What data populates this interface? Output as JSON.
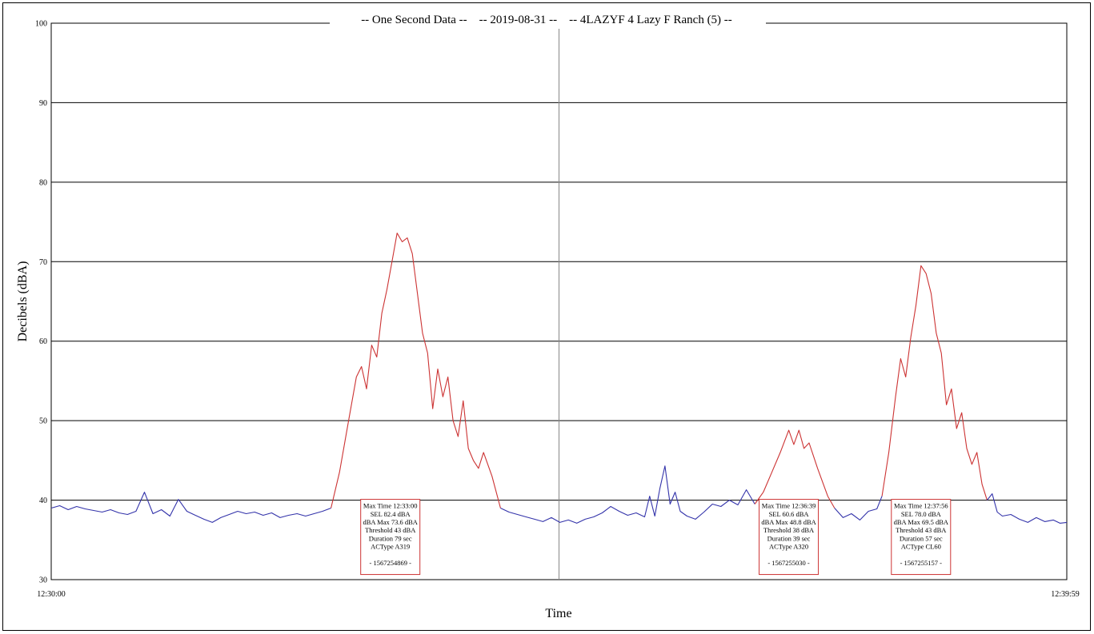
{
  "chart_data": {
    "type": "line",
    "title": "-- One Second Data --    -- 2019-08-31 --    -- 4LAZYF 4 Lazy F Ranch (5) --",
    "xlabel": "Time",
    "ylabel": "Decibels (dBA)",
    "xlim": [
      "12:30:00",
      "12:39:59"
    ],
    "x_tick_labels": [
      "12:30:00",
      "12:39:59"
    ],
    "ylim": [
      30,
      100
    ],
    "y_ticks": [
      30,
      40,
      50,
      60,
      70,
      80,
      90,
      100
    ],
    "y_tick_labels": [
      "30",
      "40",
      "50",
      "60",
      "70",
      "80",
      "90",
      "100"
    ],
    "grid": true,
    "threshold_line": 40,
    "colors": {
      "background_series": "#3333aa",
      "event_series": "#cc3333",
      "box_border": "#cc3333"
    },
    "series": [
      {
        "points": [
          [
            "12:30:00",
            39.0
          ],
          [
            "12:30:05",
            39.3
          ],
          [
            "12:30:10",
            38.8
          ],
          [
            "12:30:15",
            39.2
          ],
          [
            "12:30:20",
            38.9
          ],
          [
            "12:30:25",
            38.7
          ],
          [
            "12:30:30",
            38.5
          ],
          [
            "12:30:35",
            38.8
          ],
          [
            "12:30:40",
            38.4
          ],
          [
            "12:30:45",
            38.2
          ],
          [
            "12:30:50",
            38.6
          ],
          [
            "12:30:55",
            41.0
          ],
          [
            "12:31:00",
            38.3
          ],
          [
            "12:31:05",
            38.8
          ],
          [
            "12:31:10",
            38.0
          ],
          [
            "12:31:15",
            40.1
          ],
          [
            "12:31:20",
            38.6
          ],
          [
            "12:31:25",
            38.1
          ],
          [
            "12:31:30",
            37.6
          ],
          [
            "12:31:35",
            37.2
          ],
          [
            "12:31:40",
            37.8
          ],
          [
            "12:31:45",
            38.2
          ],
          [
            "12:31:50",
            38.6
          ],
          [
            "12:31:55",
            38.3
          ],
          [
            "12:32:00",
            38.5
          ],
          [
            "12:32:05",
            38.1
          ],
          [
            "12:32:10",
            38.4
          ],
          [
            "12:32:15",
            37.8
          ],
          [
            "12:32:20",
            38.1
          ],
          [
            "12:32:25",
            38.3
          ],
          [
            "12:32:30",
            38.0
          ],
          [
            "12:32:35",
            38.3
          ],
          [
            "12:32:40",
            38.6
          ],
          [
            "12:32:45",
            39.0
          ]
        ]
      },
      {
        "points": [
          [
            "12:32:45",
            39.0
          ],
          [
            "12:32:50",
            43.5
          ],
          [
            "12:32:55",
            49.5
          ],
          [
            "12:33:00",
            55.5
          ],
          [
            "12:33:03",
            56.8
          ],
          [
            "12:33:06",
            54.0
          ],
          [
            "12:33:09",
            59.5
          ],
          [
            "12:33:12",
            58.0
          ],
          [
            "12:33:15",
            63.5
          ],
          [
            "12:33:18",
            66.5
          ],
          [
            "12:33:21",
            70.0
          ],
          [
            "12:33:24",
            73.6
          ],
          [
            "12:33:27",
            72.5
          ],
          [
            "12:33:30",
            73.0
          ],
          [
            "12:33:33",
            71.0
          ],
          [
            "12:33:36",
            66.0
          ],
          [
            "12:33:39",
            61.0
          ],
          [
            "12:33:42",
            58.5
          ],
          [
            "12:33:45",
            51.5
          ],
          [
            "12:33:48",
            56.5
          ],
          [
            "12:33:51",
            53.0
          ],
          [
            "12:33:54",
            55.5
          ],
          [
            "12:33:57",
            50.0
          ],
          [
            "12:34:00",
            48.0
          ],
          [
            "12:34:03",
            52.5
          ],
          [
            "12:34:06",
            46.5
          ],
          [
            "12:34:09",
            45.0
          ],
          [
            "12:34:12",
            44.0
          ],
          [
            "12:34:15",
            46.0
          ],
          [
            "12:34:20",
            43.0
          ],
          [
            "12:34:25",
            39.0
          ]
        ]
      },
      {
        "points": [
          [
            "12:34:25",
            39.0
          ],
          [
            "12:34:30",
            38.5
          ],
          [
            "12:34:35",
            38.2
          ],
          [
            "12:34:40",
            37.9
          ],
          [
            "12:34:45",
            37.6
          ],
          [
            "12:34:50",
            37.3
          ],
          [
            "12:34:55",
            37.8
          ],
          [
            "12:35:00",
            37.2
          ],
          [
            "12:35:05",
            37.5
          ],
          [
            "12:35:10",
            37.1
          ],
          [
            "12:35:15",
            37.6
          ],
          [
            "12:35:20",
            37.9
          ],
          [
            "12:35:25",
            38.4
          ],
          [
            "12:35:30",
            39.2
          ],
          [
            "12:35:35",
            38.6
          ],
          [
            "12:35:40",
            38.1
          ],
          [
            "12:35:45",
            38.4
          ],
          [
            "12:35:50",
            37.9
          ],
          [
            "12:35:53",
            40.5
          ],
          [
            "12:35:56",
            38.0
          ],
          [
            "12:35:59",
            41.5
          ],
          [
            "12:36:02",
            44.3
          ],
          [
            "12:36:05",
            39.5
          ],
          [
            "12:36:08",
            41.0
          ],
          [
            "12:36:11",
            38.6
          ],
          [
            "12:36:15",
            38.0
          ],
          [
            "12:36:20",
            37.6
          ],
          [
            "12:36:25",
            38.5
          ],
          [
            "12:36:30",
            39.5
          ],
          [
            "12:36:35",
            39.2
          ],
          [
            "12:36:40",
            40.0
          ],
          [
            "12:36:45",
            39.4
          ],
          [
            "12:36:50",
            41.3
          ],
          [
            "12:36:55",
            39.5
          ]
        ]
      },
      {
        "points": [
          [
            "12:36:55",
            39.5
          ],
          [
            "12:37:00",
            41.0
          ],
          [
            "12:37:05",
            43.5
          ],
          [
            "12:37:10",
            46.0
          ],
          [
            "12:37:15",
            48.8
          ],
          [
            "12:37:18",
            47.0
          ],
          [
            "12:37:21",
            48.8
          ],
          [
            "12:37:24",
            46.5
          ],
          [
            "12:37:27",
            47.2
          ],
          [
            "12:37:32",
            44.0
          ],
          [
            "12:37:38",
            40.5
          ],
          [
            "12:37:42",
            39.0
          ]
        ]
      },
      {
        "points": [
          [
            "12:37:42",
            39.0
          ],
          [
            "12:37:47",
            37.8
          ],
          [
            "12:37:52",
            38.3
          ],
          [
            "12:37:57",
            37.5
          ],
          [
            "12:38:02",
            38.6
          ],
          [
            "12:38:07",
            38.9
          ],
          [
            "12:38:10",
            40.5
          ]
        ]
      },
      {
        "points": [
          [
            "12:38:10",
            40.5
          ],
          [
            "12:38:14",
            46.0
          ],
          [
            "12:38:18",
            53.0
          ],
          [
            "12:38:21",
            57.8
          ],
          [
            "12:38:24",
            55.5
          ],
          [
            "12:38:27",
            60.5
          ],
          [
            "12:38:30",
            64.5
          ],
          [
            "12:38:33",
            69.5
          ],
          [
            "12:38:36",
            68.5
          ],
          [
            "12:38:39",
            66.0
          ],
          [
            "12:38:42",
            61.0
          ],
          [
            "12:38:45",
            58.5
          ],
          [
            "12:38:48",
            52.0
          ],
          [
            "12:38:51",
            54.0
          ],
          [
            "12:38:54",
            49.0
          ],
          [
            "12:38:57",
            51.0
          ],
          [
            "12:39:00",
            46.5
          ],
          [
            "12:39:03",
            44.5
          ],
          [
            "12:39:06",
            46.0
          ],
          [
            "12:39:09",
            42.0
          ],
          [
            "12:39:12",
            40.0
          ]
        ]
      },
      {
        "points": [
          [
            "12:39:12",
            40.0
          ],
          [
            "12:39:15",
            40.8
          ],
          [
            "12:39:18",
            38.5
          ],
          [
            "12:39:21",
            38.0
          ],
          [
            "12:39:26",
            38.2
          ],
          [
            "12:39:31",
            37.6
          ],
          [
            "12:39:36",
            37.2
          ],
          [
            "12:39:41",
            37.8
          ],
          [
            "12:39:46",
            37.3
          ],
          [
            "12:39:51",
            37.5
          ],
          [
            "12:39:55",
            37.1
          ],
          [
            "12:39:59",
            37.2
          ]
        ]
      }
    ],
    "annotations": [
      {
        "anchor_time": "12:33:20",
        "lines": [
          "Max Time 12:33:00",
          "SEL 82.4 dBA",
          "dBA Max 73.6 dBA",
          "Threshold 43 dBA",
          "Duration 79 sec",
          "ACType A319",
          "",
          "- 1567254869 -"
        ]
      },
      {
        "anchor_time": "12:37:15",
        "lines": [
          "Max Time 12:36:39",
          "SEL 60.6 dBA",
          "dBA Max 48.8 dBA",
          "Threshold 38 dBA",
          "Duration 39 sec",
          "ACType A320",
          "",
          "- 1567255030 -"
        ]
      },
      {
        "anchor_time": "12:38:33",
        "lines": [
          "Max Time 12:37:56",
          "SEL 78.0 dBA",
          "dBA Max 69.5 dBA",
          "Threshold 43 dBA",
          "Duration 57 sec",
          "ACType CL60",
          "",
          "- 1567255157 -"
        ]
      }
    ]
  }
}
